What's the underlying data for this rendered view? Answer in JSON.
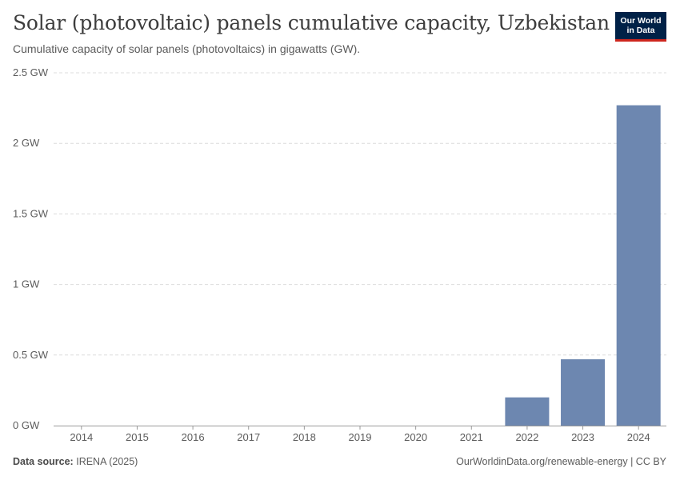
{
  "header": {
    "title": "Solar (photovoltaic) panels cumulative capacity, Uzbekistan",
    "subtitle": "Cumulative capacity of solar panels (photovoltaics) in gigawatts (GW).",
    "logo_line1": "Our World",
    "logo_line2": "in Data"
  },
  "footer": {
    "source_label": "Data source:",
    "source_value": "IRENA (2025)",
    "credit": "OurWorldinData.org/renewable-energy | CC BY"
  },
  "colors": {
    "bar": "#6d87b0",
    "grid": "#dcdcdc",
    "axis_text": "#5b5b5b",
    "baseline": "#9a9a9a"
  },
  "chart_data": {
    "type": "bar",
    "categories": [
      "2014",
      "2015",
      "2016",
      "2017",
      "2018",
      "2019",
      "2020",
      "2021",
      "2022",
      "2023",
      "2024"
    ],
    "values": [
      0,
      0,
      0,
      0,
      0,
      0,
      0,
      0,
      0.2,
      0.47,
      2.27
    ],
    "unit": "GW",
    "ylim": [
      0,
      2.5
    ],
    "yticks": [
      0,
      0.5,
      1,
      1.5,
      2,
      2.5
    ],
    "ytick_labels": [
      "0 GW",
      "0.5 GW",
      "1 GW",
      "1.5 GW",
      "2 GW",
      "2.5 GW"
    ],
    "grid": true,
    "grid_style": "dashed",
    "legend": "none"
  }
}
